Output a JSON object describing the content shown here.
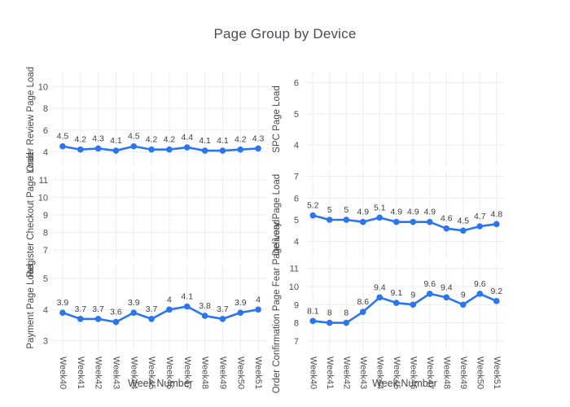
{
  "title": "Page Group by Device",
  "x_axis": {
    "label": "Week Number",
    "categories": [
      "Week40",
      "Week41",
      "Week42",
      "Week43",
      "Week44",
      "Week45",
      "Week46",
      "Week47",
      "Week48",
      "Week49",
      "Week50",
      "Week51"
    ]
  },
  "style": {
    "line_color": "#2b76f0",
    "grid_color": "#ebedf3",
    "tick_color": "#4b4d50",
    "title_color": "#4a4d52"
  },
  "chart_data": [
    {
      "type": "line",
      "row": 0,
      "col": 0,
      "ylabel": "Order Review Page Load",
      "yticks": [
        4,
        6,
        8,
        10
      ],
      "ylim": [
        2.6,
        11.4
      ],
      "values": [
        4.5,
        4.2,
        4.3,
        4.1,
        4.5,
        4.2,
        4.2,
        4.4,
        4.1,
        4.1,
        4.2,
        4.3
      ],
      "labels": [
        "4.5",
        "4.2",
        "4.3",
        "4.1",
        "4.5",
        "4.2",
        "4.2",
        "4.4",
        "4.1",
        "4.1",
        "4.2",
        "4.3"
      ]
    },
    {
      "type": "line",
      "row": 0,
      "col": 1,
      "ylabel": "SPC Page Load",
      "yticks": [
        4,
        5,
        6
      ],
      "ylim": [
        3.3,
        6.35
      ],
      "values": [],
      "labels": []
    },
    {
      "type": "line",
      "row": 1,
      "col": 0,
      "ylabel": "Register Checkout Page Load",
      "yticks": [
        7,
        8,
        9,
        10,
        11
      ],
      "ylim": [
        6.5,
        11.5
      ],
      "values": [],
      "labels": []
    },
    {
      "type": "line",
      "row": 1,
      "col": 1,
      "ylabel": "Delivery Page Load",
      "yticks": [
        4,
        5,
        6,
        7
      ],
      "ylim": [
        3.2,
        7.25
      ],
      "values": [
        5.2,
        5,
        5,
        4.9,
        5.1,
        4.9,
        4.9,
        4.9,
        4.6,
        4.5,
        4.7,
        4.8
      ],
      "labels": [
        "5.2",
        "5",
        "5",
        "4.9",
        "5.1",
        "4.9",
        "4.9",
        "4.9",
        "4.6",
        "4.5",
        "4.7",
        "4.8"
      ]
    },
    {
      "type": "line",
      "row": 2,
      "col": 0,
      "ylabel": "Payment Page Load",
      "yticks": [
        3,
        4,
        5
      ],
      "ylim": [
        2.7,
        5.5
      ],
      "values": [
        3.9,
        3.7,
        3.7,
        3.6,
        3.9,
        3.7,
        4,
        4.1,
        3.8,
        3.7,
        3.9,
        4
      ],
      "labels": [
        "3.9",
        "3.7",
        "3.7",
        "3.6",
        "3.9",
        "3.7",
        "4",
        "4.1",
        "3.8",
        "3.7",
        "3.9",
        "4"
      ]
    },
    {
      "type": "line",
      "row": 2,
      "col": 1,
      "ylabel": "Order Confirmation Page Fear Page Load",
      "yticks": [
        7,
        8,
        9,
        10,
        11
      ],
      "ylim": [
        6.5,
        11.3
      ],
      "values": [
        8.1,
        8,
        8,
        8.6,
        9.4,
        9.1,
        9,
        9.6,
        9.4,
        9,
        9.6,
        9.2
      ],
      "labels": [
        "8.1",
        "8",
        "8",
        "8.6",
        "9.4",
        "9.1",
        "9",
        "9.6",
        "9.4",
        "9",
        "9.6",
        "9.2"
      ]
    }
  ],
  "layout_hints": {
    "grid": "on",
    "legend": "none",
    "x_tick_angle": 90,
    "rows": 3,
    "cols": 2
  }
}
